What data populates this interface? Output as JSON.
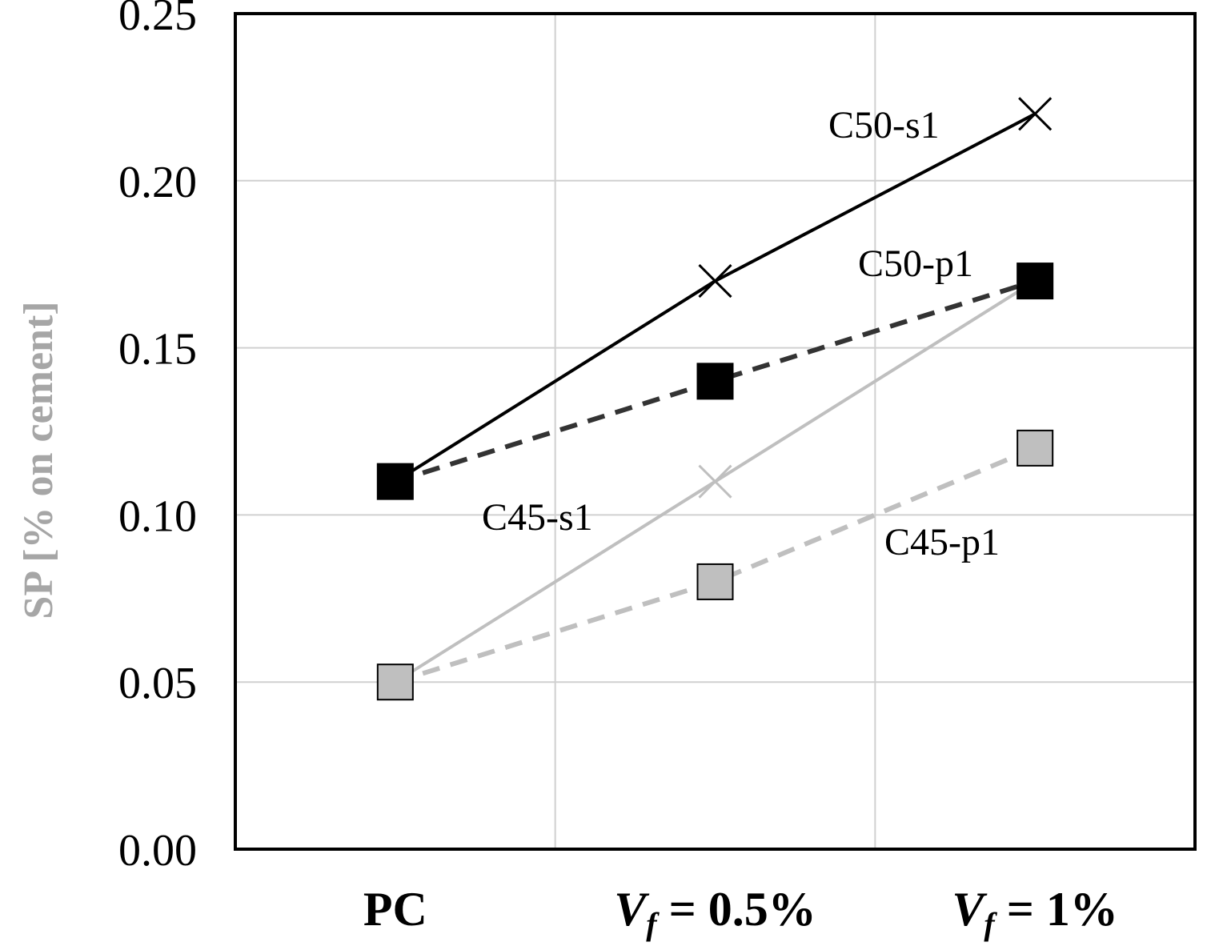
{
  "chart_data": {
    "type": "line",
    "categories": [
      "PC",
      "Vf = 0.5%",
      "Vf = 1%"
    ],
    "category_labels": [
      {
        "main": "PC"
      },
      {
        "var": "V",
        "sub": "f",
        "rest": " = 0.5%"
      },
      {
        "var": "V",
        "sub": "f",
        "rest": " = 1%"
      }
    ],
    "ylabel": "SP [% on cement]",
    "ylim": [
      0,
      0.25
    ],
    "yticks": [
      "0.00",
      "0.05",
      "0.10",
      "0.15",
      "0.20",
      "0.25"
    ],
    "grid": true,
    "legend": "none",
    "series": [
      {
        "name": "C50-s1",
        "values": [
          0.11,
          0.17,
          0.22
        ],
        "marker": "square-then-x",
        "line": "solid",
        "color": "#000000"
      },
      {
        "name": "C50-p1",
        "values": [
          0.11,
          0.14,
          0.17
        ],
        "marker": "square",
        "line": "dashed",
        "color": "#333333",
        "fill": "#000000"
      },
      {
        "name": "C45-s1",
        "values": [
          0.05,
          0.11,
          0.17
        ],
        "marker": "x",
        "line": "solid",
        "color": "#bfbfbf"
      },
      {
        "name": "C45-p1",
        "values": [
          0.05,
          0.08,
          0.12
        ],
        "marker": "square",
        "line": "dashed",
        "color": "#bfbfbf",
        "fill": "#bfbfbf"
      }
    ],
    "annotations": [
      "C50-s1",
      "C50-p1",
      "C45-s1",
      "C45-p1"
    ]
  }
}
